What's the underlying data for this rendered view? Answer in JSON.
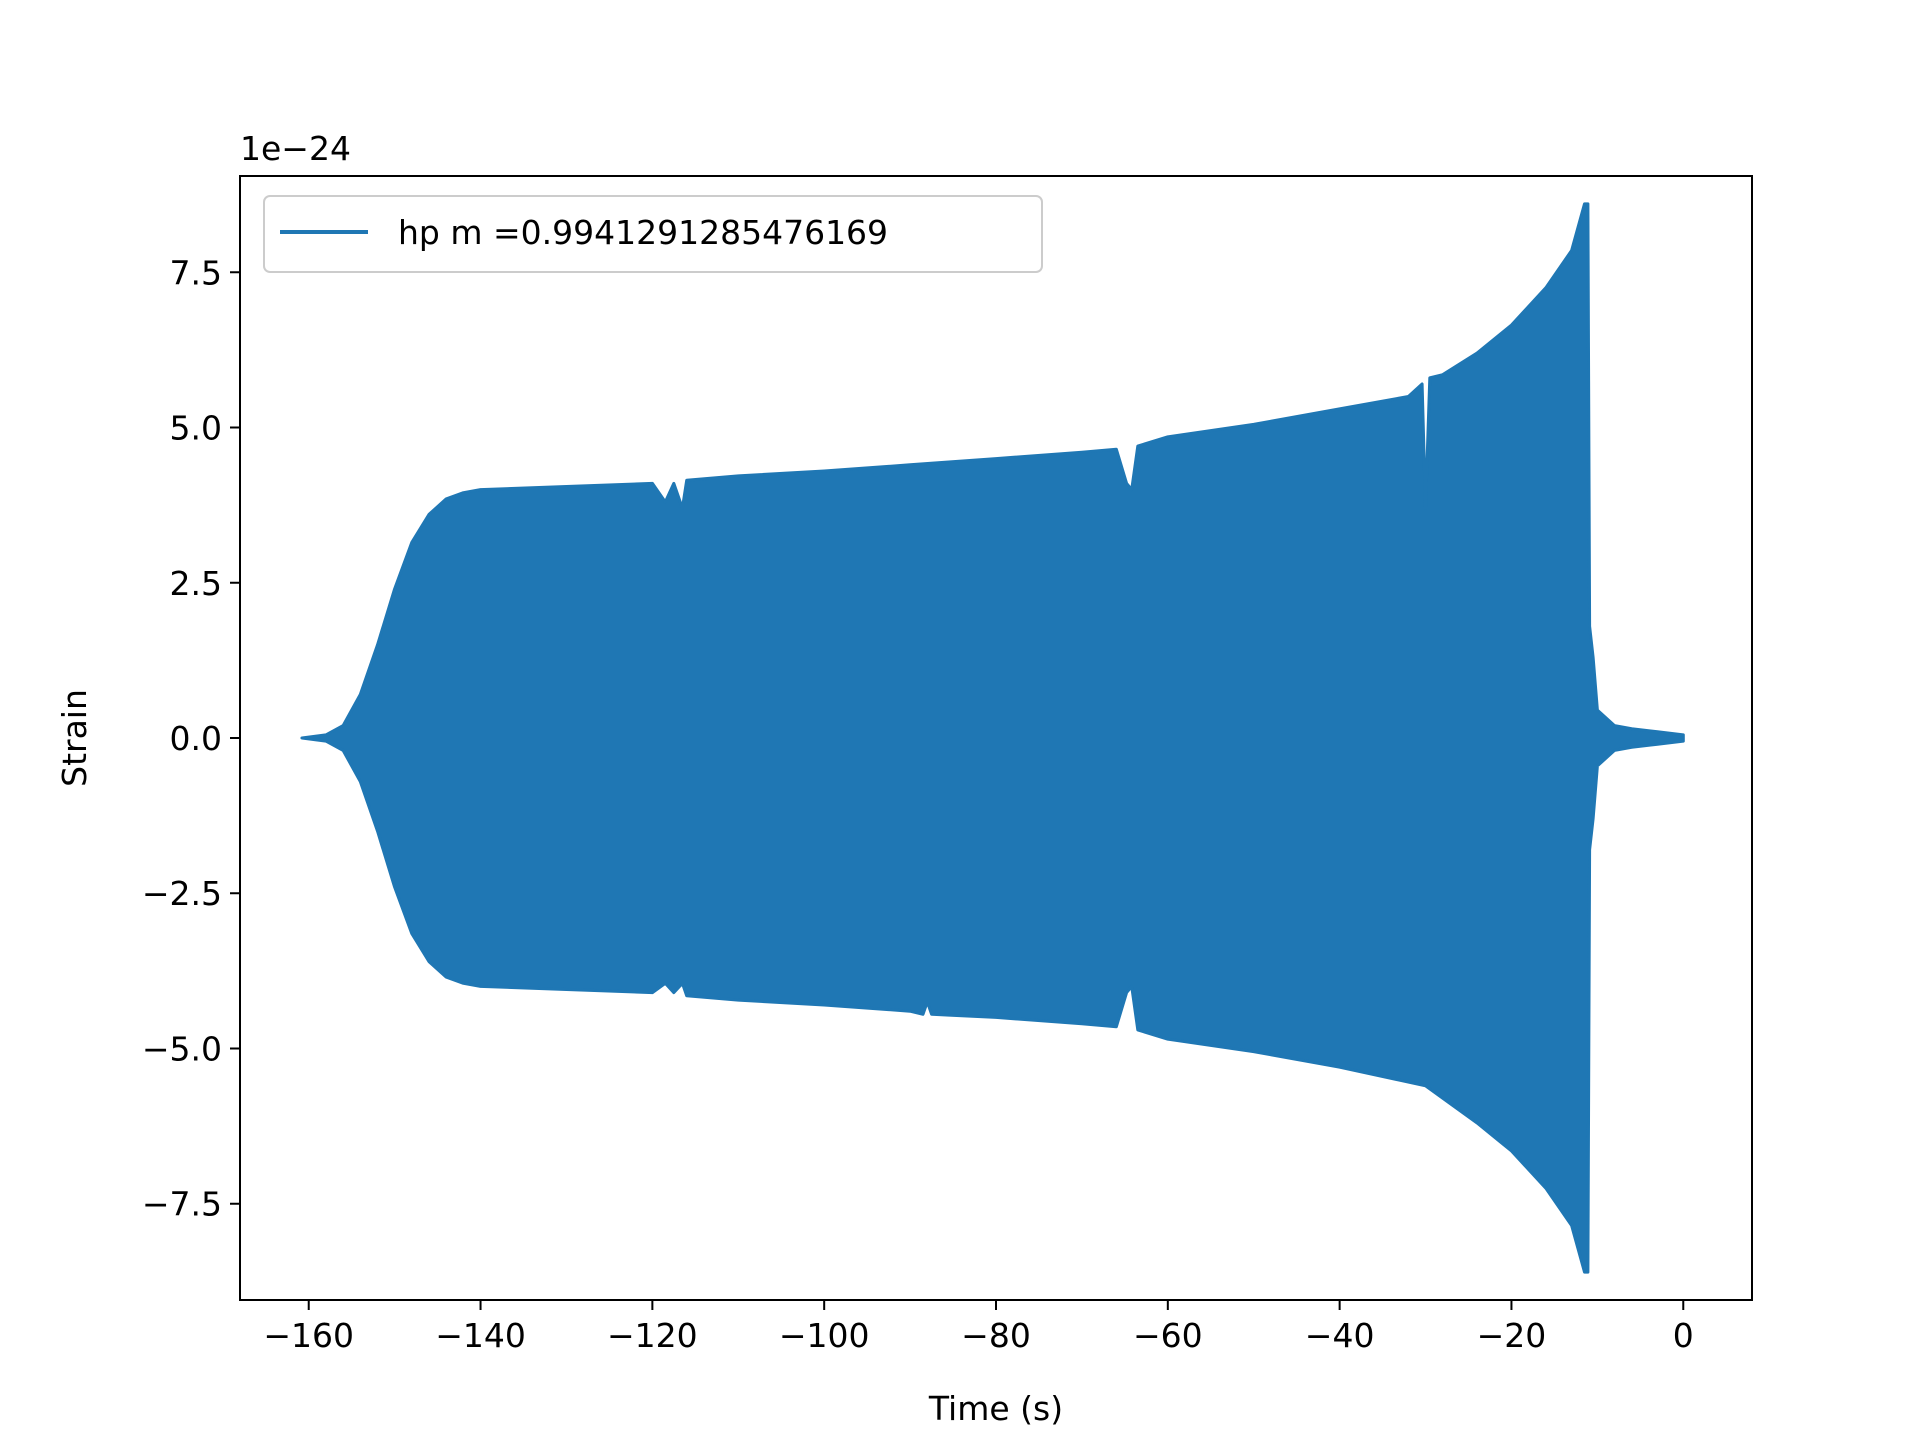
{
  "chart_data": {
    "type": "line",
    "title": "",
    "xlabel": "Time (s)",
    "ylabel": "Strain",
    "offset_text": "1e−24",
    "y_scale_exponent": -24,
    "xlim": [
      -168,
      8
    ],
    "ylim": [
      -9.05,
      9.05
    ],
    "x_ticks": [
      -160,
      -140,
      -120,
      -100,
      -80,
      -60,
      -40,
      -20,
      0
    ],
    "x_tick_labels": [
      "−160",
      "−140",
      "−120",
      "−100",
      "−80",
      "−60",
      "−40",
      "−20",
      "0"
    ],
    "y_ticks": [
      7.5,
      5.0,
      2.5,
      0.0,
      -2.5,
      -5.0,
      -7.5
    ],
    "y_tick_labels": [
      "7.5",
      "5.0",
      "2.5",
      "0.0",
      "−2.5",
      "−5.0",
      "−7.5"
    ],
    "grid": false,
    "legend_position": "upper-left",
    "series": [
      {
        "name": "hp m =0.9941291285476169",
        "color": "#1f77b4",
        "render": "oscillating-fill",
        "upper_envelope": {
          "x": [
            -160.8,
            -158,
            -156,
            -154,
            -152,
            -150,
            -148,
            -146,
            -144,
            -142,
            -140,
            -130,
            -120,
            -118.5,
            -117.5,
            -116.5,
            -116,
            -110,
            -100,
            -90,
            -80,
            -70,
            -66,
            -64.8,
            -64.2,
            -63.5,
            -60,
            -50,
            -40,
            -32,
            -30.4,
            -30.0,
            -29.5,
            -28,
            -24,
            -20,
            -16,
            -13,
            -11.5,
            -11.1,
            -10.9,
            -10.5,
            -10,
            -8,
            -6,
            -3,
            0
          ],
          "y": [
            0.0,
            0.05,
            0.2,
            0.7,
            1.5,
            2.4,
            3.15,
            3.6,
            3.85,
            3.95,
            4.0,
            4.05,
            4.1,
            3.8,
            4.1,
            3.7,
            4.15,
            4.22,
            4.3,
            4.4,
            4.5,
            4.6,
            4.65,
            4.1,
            4.0,
            4.7,
            4.85,
            5.05,
            5.3,
            5.5,
            5.7,
            3.7,
            5.8,
            5.85,
            6.2,
            6.65,
            7.25,
            7.85,
            8.6,
            8.6,
            1.8,
            1.3,
            0.45,
            0.2,
            0.15,
            0.1,
            0.05
          ]
        },
        "lower_envelope": {
          "x": [
            -160.8,
            -158,
            -156,
            -154,
            -152,
            -150,
            -148,
            -146,
            -144,
            -142,
            -140,
            -130,
            -120,
            -118.5,
            -117.5,
            -116.5,
            -116,
            -110,
            -100,
            -90,
            -88.5,
            -88,
            -87.5,
            -80,
            -70,
            -66,
            -64.8,
            -64.2,
            -63.5,
            -60,
            -50,
            -40,
            -30,
            -24,
            -20,
            -16,
            -13,
            -11.5,
            -11.1,
            -10.9,
            -10.5,
            -10,
            -8,
            -6,
            -3,
            0
          ],
          "y": [
            0.0,
            -0.05,
            -0.2,
            -0.7,
            -1.5,
            -2.4,
            -3.15,
            -3.6,
            -3.85,
            -3.95,
            -4.0,
            -4.05,
            -4.1,
            -3.95,
            -4.1,
            -3.95,
            -4.15,
            -4.22,
            -4.3,
            -4.4,
            -4.45,
            -4.25,
            -4.45,
            -4.5,
            -4.6,
            -4.65,
            -4.1,
            -4.0,
            -4.7,
            -4.85,
            -5.05,
            -5.3,
            -5.6,
            -6.2,
            -6.65,
            -7.25,
            -7.85,
            -8.6,
            -8.6,
            -1.8,
            -1.3,
            -0.45,
            -0.2,
            -0.15,
            -0.1,
            -0.05
          ]
        }
      }
    ]
  }
}
